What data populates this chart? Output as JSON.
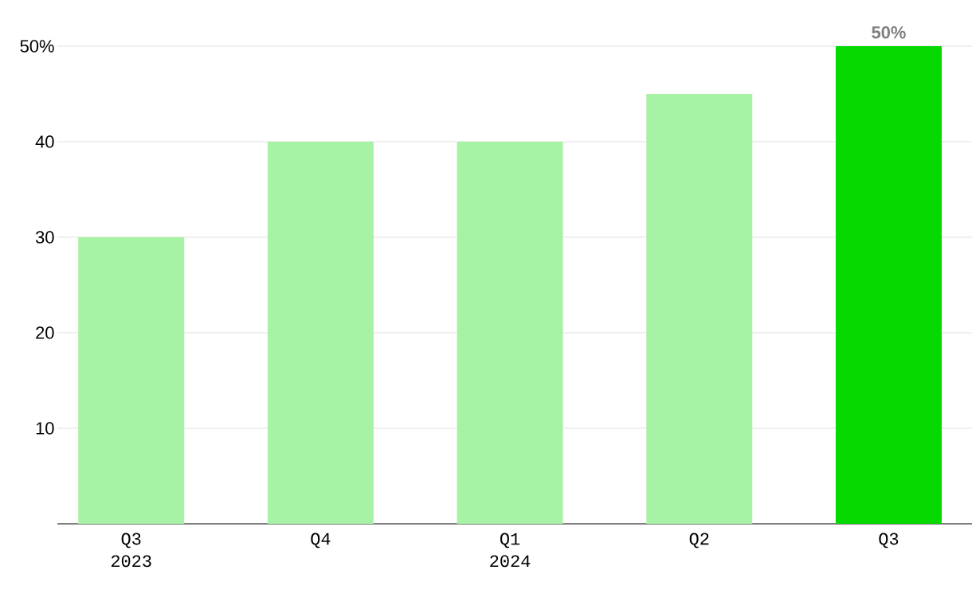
{
  "chart_data": {
    "type": "bar",
    "categories": [
      "Q3 2023",
      "Q4",
      "Q1 2024",
      "Q2",
      "Q3"
    ],
    "values": [
      30,
      40,
      40,
      45,
      50
    ],
    "colors": [
      "#a8f2a5",
      "#a8f2a5",
      "#a8f2a5",
      "#a8f2a5",
      "#06d900"
    ],
    "value_labels": [
      null,
      null,
      null,
      null,
      "50%"
    ],
    "ylim": [
      0,
      50
    ],
    "yticks": [
      10,
      20,
      30,
      40,
      {
        "value": 50,
        "label": "50%"
      }
    ],
    "grid": "y"
  }
}
